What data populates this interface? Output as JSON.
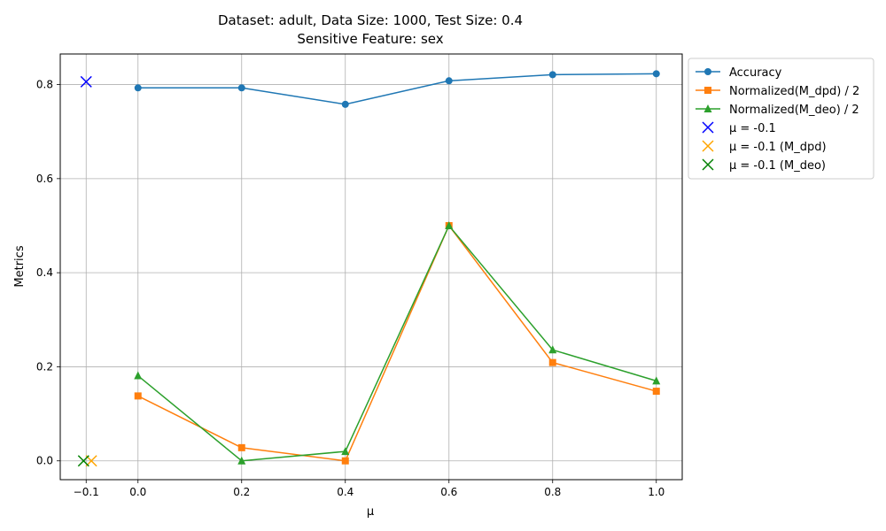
{
  "chart_data": {
    "type": "line",
    "title": "Dataset: adult, Data Size: 1000, Test Size: 0.4",
    "subtitle": "Sensitive Feature: sex",
    "xlabel": "μ",
    "ylabel": "Metrics",
    "xlim": [
      -0.15,
      1.05
    ],
    "ylim": [
      -0.04,
      0.865
    ],
    "xticks": [
      -0.1,
      0.0,
      0.2,
      0.4,
      0.6,
      0.8,
      1.0
    ],
    "xtick_labels": [
      "−0.1",
      "0.0",
      "0.2",
      "0.4",
      "0.6",
      "0.8",
      "1.0"
    ],
    "yticks": [
      0.0,
      0.2,
      0.4,
      0.6,
      0.8
    ],
    "ytick_labels": [
      "0.0",
      "0.2",
      "0.4",
      "0.6",
      "0.8"
    ],
    "grid": true,
    "legend_position": "outside-top-right",
    "x": [
      0.0,
      0.2,
      0.4,
      0.6,
      0.8,
      1.0
    ],
    "series": [
      {
        "name": "Accuracy",
        "values": [
          0.793,
          0.793,
          0.758,
          0.808,
          0.821,
          0.823
        ],
        "color": "#1f77b4",
        "marker": "circle"
      },
      {
        "name": "Normalized(M_dpd) / 2",
        "values": [
          0.138,
          0.028,
          0.0,
          0.5,
          0.209,
          0.148
        ],
        "color": "#ff7f0e",
        "marker": "square"
      },
      {
        "name": "Normalized(M_deo) / 2",
        "values": [
          0.181,
          0.0,
          0.02,
          0.5,
          0.236,
          0.17
        ],
        "color": "#2ca02c",
        "marker": "triangle"
      }
    ],
    "points": [
      {
        "name": "μ = -0.1",
        "x": -0.1,
        "y": 0.806,
        "color": "#0000ff",
        "marker": "x"
      },
      {
        "name": "μ = -0.1 (M_dpd)",
        "x": -0.09,
        "y": 0.0,
        "color": "#ffa500",
        "marker": "x"
      },
      {
        "name": "μ = -0.1 (M_deo)",
        "x": -0.105,
        "y": 0.0,
        "color": "#008000",
        "marker": "x"
      }
    ]
  }
}
